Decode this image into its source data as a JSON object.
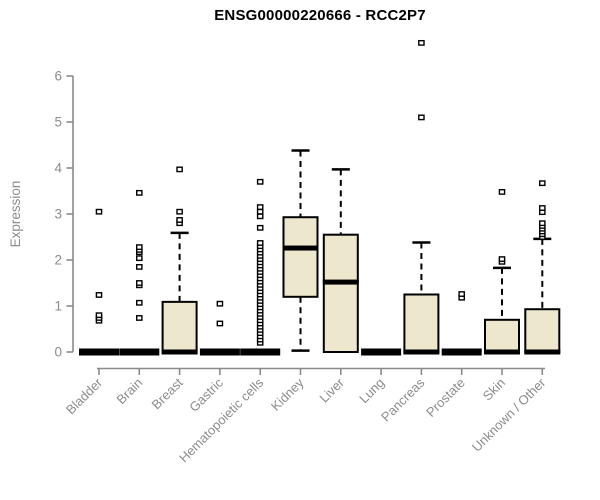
{
  "chart_data": {
    "type": "boxplot",
    "title": "ENSG00000220666 - RCC2P7",
    "ylabel": "Expression",
    "xlabel": "",
    "ylim": [
      0,
      6.9
    ],
    "yticks": [
      0,
      1,
      2,
      3,
      4,
      5,
      6
    ],
    "grid": false,
    "legend": "none",
    "colors": {
      "box_fill": "#EDE8CD",
      "box_stroke": "#000000",
      "median": "#000000",
      "whisker": "#000000",
      "outlier_stroke": "#000000",
      "outlier_fill": "#FFFFFF",
      "axis": "#8A8A8A",
      "tick_label": "#8C8C8C",
      "title": "#000000",
      "background": "#FFFFFF"
    },
    "categories": [
      "Bladder",
      "Brain",
      "Breast",
      "Gastric",
      "Hematopoietic cells",
      "Kidney",
      "Liver",
      "Lung",
      "Pancreas",
      "Prostate",
      "Skin",
      "Unknown / Other"
    ],
    "series": [
      {
        "name": "Bladder",
        "low": 0,
        "q1": 0,
        "median": 0,
        "q3": 0,
        "high": 0,
        "outliers": [
          0.68,
          0.74,
          0.8,
          1.24,
          3.05
        ]
      },
      {
        "name": "Brain",
        "low": 0,
        "q1": 0,
        "median": 0,
        "q3": 0,
        "high": 0,
        "outliers": [
          0.74,
          1.07,
          1.45,
          1.5,
          1.85,
          2.04,
          2.17,
          2.22,
          2.28,
          3.46
        ]
      },
      {
        "name": "Breast",
        "low": 0,
        "q1": 0,
        "median": 0,
        "q3": 1.09,
        "high": 2.59,
        "outliers": [
          2.8,
          2.87,
          3.05,
          3.97
        ]
      },
      {
        "name": "Gastric",
        "low": 0,
        "q1": 0,
        "median": 0,
        "q3": 0,
        "high": 0,
        "outliers": [
          0.62,
          1.05
        ]
      },
      {
        "name": "Hematopoietic cells",
        "low": 0,
        "q1": 0,
        "median": 0,
        "q3": 0,
        "high": 0,
        "outliers": [
          0.2,
          0.27,
          0.34,
          0.41,
          0.48,
          0.55,
          0.62,
          0.69,
          0.76,
          0.83,
          0.9,
          0.97,
          1.04,
          1.11,
          1.18,
          1.25,
          1.32,
          1.39,
          1.46,
          1.53,
          1.6,
          1.67,
          1.74,
          1.81,
          1.88,
          1.95,
          2.02,
          2.09,
          2.16,
          2.23,
          2.3,
          2.37,
          2.7,
          2.95,
          3.05,
          3.15,
          3.7
        ]
      },
      {
        "name": "Kidney",
        "low": 0.03,
        "q1": 1.2,
        "median": 2.26,
        "q3": 2.93,
        "high": 4.38,
        "outliers": []
      },
      {
        "name": "Liver",
        "low": 0,
        "q1": 0,
        "median": 1.52,
        "q3": 2.55,
        "high": 3.97,
        "outliers": []
      },
      {
        "name": "Lung",
        "low": 0,
        "q1": 0,
        "median": 0,
        "q3": 0,
        "high": 0,
        "outliers": []
      },
      {
        "name": "Pancreas",
        "low": 0,
        "q1": 0,
        "median": 0,
        "q3": 1.25,
        "high": 2.38,
        "outliers": [
          5.1,
          6.72
        ]
      },
      {
        "name": "Prostate",
        "low": 0,
        "q1": 0,
        "median": 0,
        "q3": 0,
        "high": 0,
        "outliers": [
          1.18,
          1.26
        ]
      },
      {
        "name": "Skin",
        "low": 0,
        "q1": 0,
        "median": 0,
        "q3": 0.7,
        "high": 1.83,
        "outliers": [
          1.96,
          2.02,
          3.48
        ]
      },
      {
        "name": "Unknown / Other",
        "low": 0,
        "q1": 0,
        "median": 0,
        "q3": 0.93,
        "high": 2.46,
        "outliers": [
          2.5,
          2.56,
          2.62,
          2.68,
          2.74,
          2.8,
          3.04,
          3.13,
          3.67
        ]
      }
    ]
  }
}
